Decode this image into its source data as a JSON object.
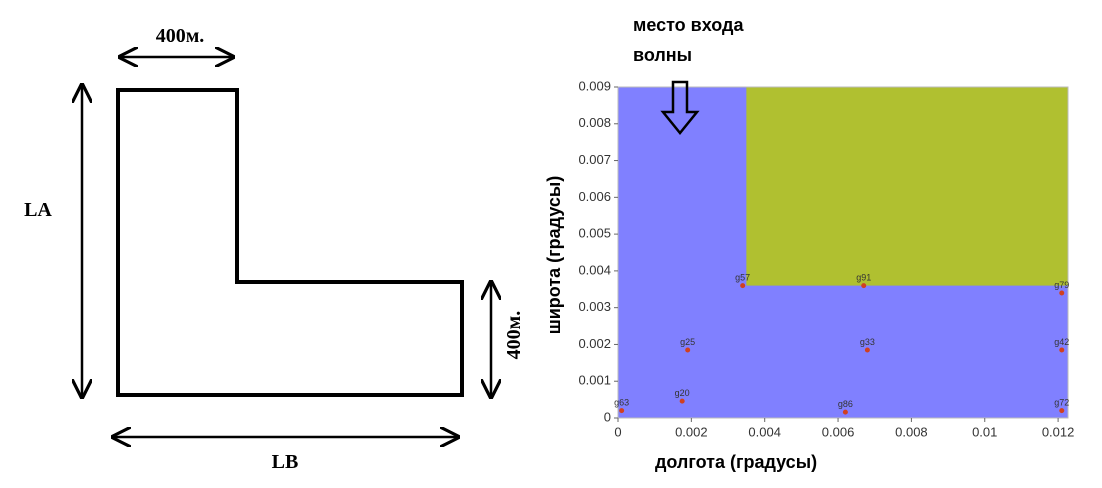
{
  "diagram": {
    "top_label": "400м.",
    "left_label": "LA",
    "bottom_label": "LB",
    "right_label": "400м."
  },
  "chart_data": {
    "type": "scatter",
    "annotation": "место входа волны",
    "xlabel": "долгота (градусы)",
    "ylabel": "широта (градусы)",
    "xlim": [
      0,
      0.01227
    ],
    "ylim": [
      0,
      0.009
    ],
    "xticks": [
      0,
      0.002,
      0.004,
      0.006,
      0.008,
      0.01,
      0.012
    ],
    "yticks": [
      0,
      0.001,
      0.002,
      0.003,
      0.004,
      0.005,
      0.006,
      0.007,
      0.008,
      0.009
    ],
    "background": "#8080ff",
    "regions": [
      {
        "color": "#b0c030",
        "xlim": [
          0.0035,
          0.01227
        ],
        "ylim": [
          0.0036,
          0.009
        ]
      }
    ],
    "series": [
      {
        "color": "#d04020",
        "labels": [
          "g63",
          "g20",
          "g86",
          "g72",
          "g25",
          "g33",
          "g42",
          "g57",
          "g91",
          "g79"
        ],
        "x": [
          0.0001,
          0.00175,
          0.0062,
          0.0121,
          0.0019,
          0.0068,
          0.0121,
          0.0034,
          0.0067,
          0.0121
        ],
        "values": [
          0.0002,
          0.00046,
          0.00016,
          0.0002,
          0.00185,
          0.00185,
          0.00185,
          0.0036,
          0.0036,
          0.0034
        ]
      }
    ]
  }
}
